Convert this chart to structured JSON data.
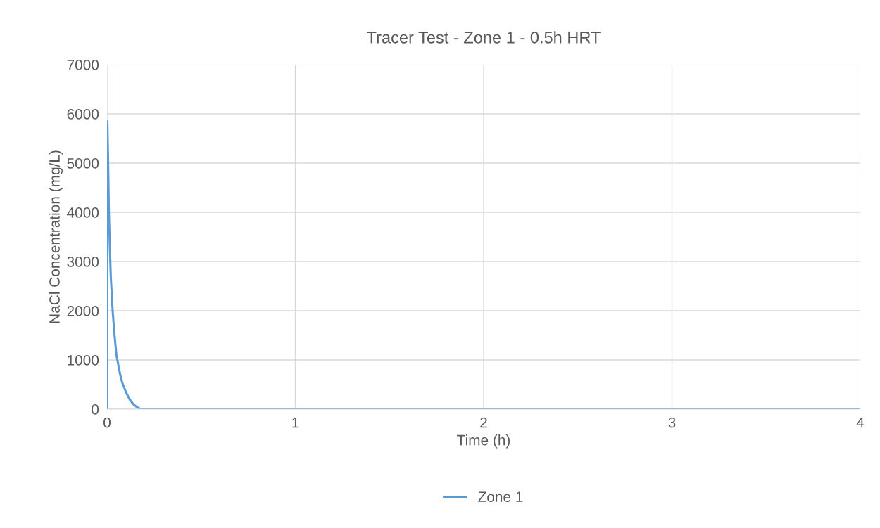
{
  "chart_data": {
    "type": "line",
    "title": "Tracer Test - Zone 1 - 0.5h HRT",
    "xlabel": "Time (h)",
    "ylabel": "NaCl Concentration (mg/L)",
    "x": [
      0,
      0.002,
      0.006,
      0.01,
      0.015,
      0.02,
      0.03,
      0.04,
      0.05,
      0.06,
      0.07,
      0.08,
      0.1,
      0.12,
      0.14,
      0.16,
      0.18,
      1,
      2,
      3,
      4
    ],
    "series": [
      {
        "name": "Zone 1",
        "color": "#5b9bd5",
        "values": [
          0,
          5850,
          5000,
          4000,
          3300,
          2700,
          2000,
          1500,
          1100,
          900,
          700,
          550,
          350,
          200,
          100,
          40,
          0,
          0,
          0,
          0,
          0
        ]
      }
    ],
    "xlim": [
      0,
      4
    ],
    "xticks": [
      0,
      1,
      2,
      3,
      4
    ],
    "ylim": [
      0,
      7000
    ],
    "yticks": [
      0,
      1000,
      2000,
      3000,
      4000,
      5000,
      6000,
      7000
    ],
    "grid": true,
    "legend": "bottom",
    "marker": "none",
    "line_style": "solid"
  }
}
